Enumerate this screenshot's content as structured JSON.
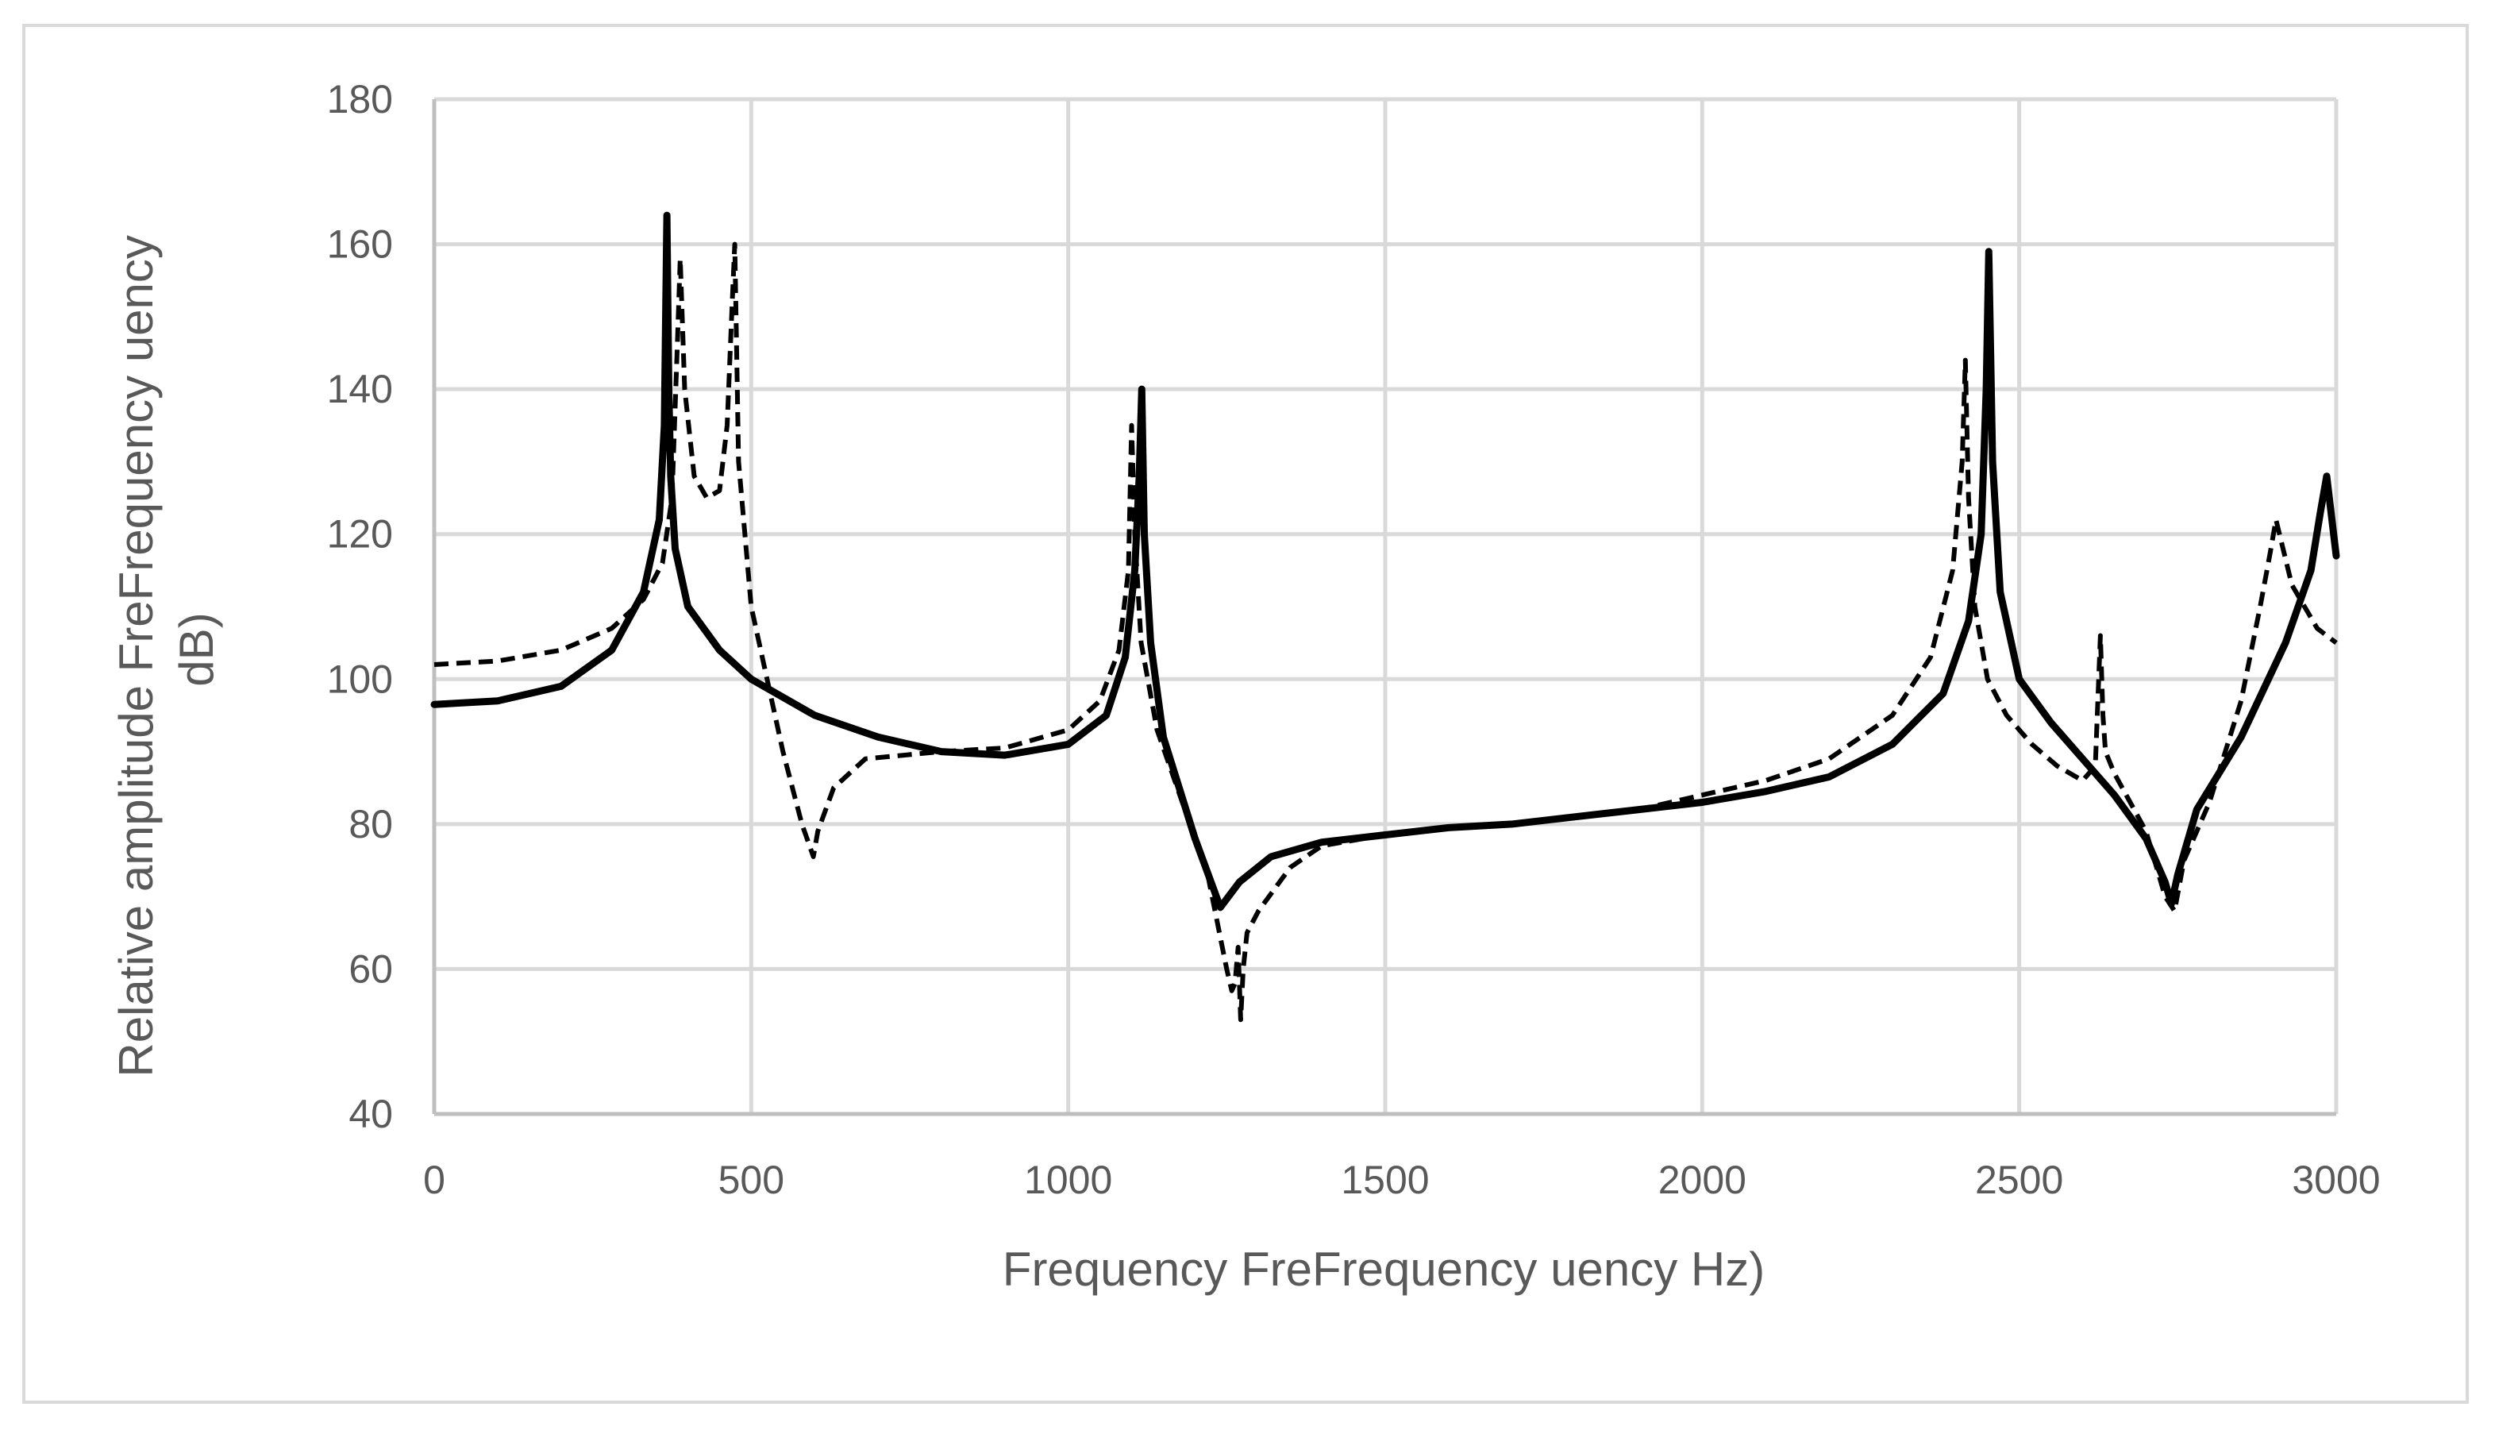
{
  "chart_data": {
    "type": "line",
    "title": "",
    "xlabel": "Frequency FreFrequency uency Hz)",
    "ylabel": "Relative amplitude FreFrequency uency dB)",
    "ylabel_lines": [
      "Relative amplitude FreFrequency uency",
      "dB)"
    ],
    "xlim": [
      0,
      3000
    ],
    "ylim": [
      40,
      180
    ],
    "x_ticks": [
      0,
      500,
      1000,
      1500,
      2000,
      2500,
      3000
    ],
    "y_ticks": [
      40,
      60,
      80,
      100,
      120,
      140,
      160,
      180
    ],
    "x_tick_labels": [
      "0",
      "500",
      "1000",
      "1500",
      "2000",
      "2500",
      "3000"
    ],
    "y_tick_labels": [
      "40",
      "60",
      "80",
      "100",
      "120",
      "140",
      "160",
      "180"
    ],
    "grid": true,
    "legend": "none",
    "series": [
      {
        "name": "solid",
        "style": "solid",
        "x": [
          0,
          100,
          200,
          280,
          330,
          355,
          363,
          367,
          370,
          373,
          380,
          400,
          450,
          500,
          600,
          700,
          800,
          900,
          1000,
          1060,
          1090,
          1105,
          1112,
          1116,
          1120,
          1130,
          1150,
          1200,
          1240,
          1270,
          1320,
          1400,
          1500,
          1600,
          1700,
          1800,
          1900,
          2000,
          2100,
          2200,
          2300,
          2380,
          2420,
          2440,
          2448,
          2452,
          2458,
          2470,
          2500,
          2550,
          2600,
          2650,
          2700,
          2730,
          2740,
          2750,
          2780,
          2850,
          2920,
          2960,
          2975,
          2985,
          3000
        ],
        "y": [
          96.5,
          97,
          99,
          104,
          112,
          122,
          135,
          164,
          140,
          128,
          118,
          110,
          104,
          100,
          95,
          92,
          90,
          89.5,
          91,
          95,
          103,
          115,
          128,
          140,
          120,
          105,
          92,
          78,
          68.5,
          72,
          75.5,
          77.5,
          78.5,
          79.5,
          80,
          81,
          82,
          83,
          84.5,
          86.5,
          91,
          98,
          108,
          120,
          140,
          159,
          130,
          112,
          100,
          94,
          89,
          84,
          78,
          72,
          69,
          73,
          82,
          92,
          105,
          115,
          123,
          128,
          117
        ]
      },
      {
        "name": "dashed",
        "style": "dashed",
        "x": [
          0,
          100,
          200,
          280,
          330,
          360,
          375,
          383,
          388,
          395,
          410,
          430,
          450,
          462,
          470,
          474,
          480,
          500,
          550,
          580,
          598,
          605,
          630,
          680,
          800,
          900,
          1000,
          1050,
          1080,
          1095,
          1100,
          1105,
          1115,
          1140,
          1180,
          1220,
          1250,
          1258,
          1263,
          1268,
          1272,
          1276,
          1282,
          1300,
          1350,
          1400,
          1500,
          1600,
          1700,
          1800,
          1900,
          2000,
          2100,
          2200,
          2300,
          2360,
          2395,
          2410,
          2415,
          2420,
          2430,
          2450,
          2480,
          2520,
          2560,
          2600,
          2620,
          2628,
          2632,
          2636,
          2650,
          2700,
          2730,
          2745,
          2760,
          2800,
          2850,
          2880,
          2895,
          2905,
          2930,
          2970,
          3000
        ],
        "y": [
          102,
          102.5,
          104,
          107,
          111,
          116,
          125,
          145,
          158,
          140,
          128,
          125,
          126,
          135,
          152,
          160,
          130,
          110,
          90,
          80,
          75.5,
          79,
          85,
          89,
          90,
          90.5,
          93,
          97,
          104,
          115,
          135,
          120,
          105,
          93,
          83,
          73,
          60,
          57,
          58,
          63,
          53,
          60,
          65,
          68,
          74,
          77,
          78.5,
          79.5,
          80,
          81,
          82,
          84,
          86,
          89,
          95,
          103,
          115,
          130,
          144,
          125,
          110,
          100,
          95,
          91,
          88,
          86,
          88,
          106,
          95,
          90,
          87,
          79,
          70,
          68,
          75,
          83,
          97,
          110,
          117,
          122,
          113,
          107,
          105
        ]
      }
    ]
  }
}
